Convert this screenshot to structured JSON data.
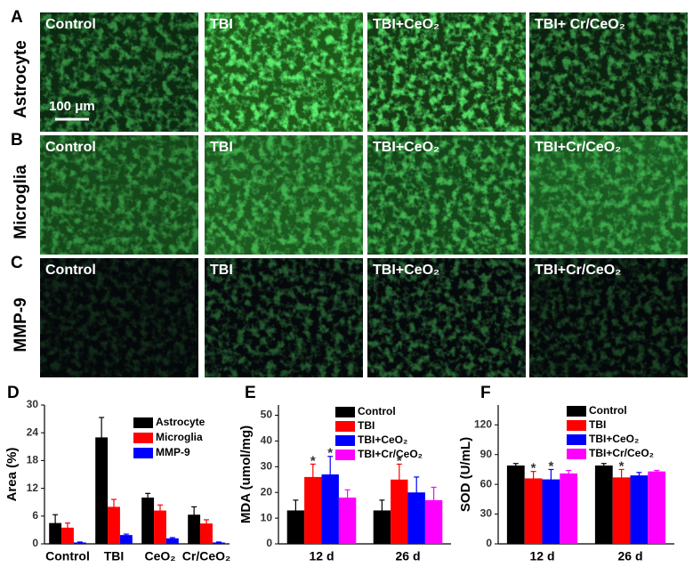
{
  "micrographs": {
    "rows": [
      {
        "letter": "A",
        "label": "Astrocyte",
        "columns": [
          "Control",
          "TBI",
          "TBI+CeO₂",
          "TBI+ Cr/CeO₂"
        ]
      },
      {
        "letter": "B",
        "label": "Microglia",
        "columns": [
          "Control",
          "TBI",
          "TBI+CeO₂",
          "TBI+Cr/CeO₂"
        ]
      },
      {
        "letter": "C",
        "label": "MMP-9",
        "columns": [
          "Control",
          "TBI",
          "TBI+CeO₂",
          "TBI+Cr/CeO₂"
        ]
      }
    ],
    "scale_bar": "100 μm"
  },
  "chart_data": [
    {
      "type": "bar",
      "label": "D",
      "ylabel": "Area (%)",
      "categories": [
        "Control",
        "TBI",
        "CeO₂",
        "Cr/CeO₂"
      ],
      "ylim": [
        0,
        30
      ],
      "yticks": [
        0,
        6,
        12,
        18,
        24,
        30
      ],
      "legend": "upper right",
      "series": [
        {
          "name": "Astrocyte",
          "color": "#000000",
          "values": [
            4.5,
            23,
            10,
            6.3
          ],
          "errors": [
            1.8,
            4.3,
            0.9,
            1.7
          ]
        },
        {
          "name": "Microglia",
          "color": "#ff0000",
          "values": [
            3.5,
            8,
            7.2,
            4.4
          ],
          "errors": [
            1,
            1.6,
            1.2,
            0.8
          ]
        },
        {
          "name": "MMP-9",
          "color": "#0000ff",
          "values": [
            0.3,
            1.9,
            1.2,
            0.3
          ],
          "errors": [
            0.1,
            0.2,
            0.15,
            0.1
          ]
        }
      ]
    },
    {
      "type": "bar",
      "label": "E",
      "ylabel": "MDA (umol/mg)",
      "categories": [
        "12 d",
        "26 d"
      ],
      "ylim": [
        0,
        54
      ],
      "yticks": [
        0,
        10,
        20,
        30,
        40,
        50
      ],
      "legend": "upper right",
      "series": [
        {
          "name": "Control",
          "color": "#000000",
          "values": [
            13,
            13
          ],
          "errors": [
            4,
            4
          ],
          "stars": [
            null,
            null
          ]
        },
        {
          "name": "TBI",
          "color": "#ff0000",
          "values": [
            26,
            25
          ],
          "errors": [
            5,
            6
          ],
          "stars": [
            "*",
            "*"
          ]
        },
        {
          "name": "TBI+CeO₂",
          "color": "#0000ff",
          "values": [
            27,
            20
          ],
          "errors": [
            7,
            6
          ],
          "stars": [
            "*",
            null
          ]
        },
        {
          "name": "TBI+Cr/CeO₂",
          "color": "#ff00ff",
          "values": [
            18,
            17
          ],
          "errors": [
            3,
            5
          ],
          "stars": [
            null,
            null
          ]
        }
      ]
    },
    {
      "type": "bar",
      "label": "F",
      "ylabel": "SOD (U/mL)",
      "categories": [
        "12 d",
        "26 d"
      ],
      "ylim": [
        0,
        140
      ],
      "yticks": [
        0,
        30,
        60,
        90,
        120
      ],
      "legend": "upper right",
      "series": [
        {
          "name": "Control",
          "color": "#000000",
          "values": [
            79,
            79
          ],
          "errors": [
            2,
            2
          ],
          "stars": [
            null,
            null
          ]
        },
        {
          "name": "TBI",
          "color": "#ff0000",
          "values": [
            66,
            67
          ],
          "errors": [
            7,
            8
          ],
          "stars": [
            "*",
            "*"
          ]
        },
        {
          "name": "TBI+CeO₂",
          "color": "#0000ff",
          "values": [
            65,
            69
          ],
          "errors": [
            10,
            3
          ],
          "stars": [
            "*",
            null
          ]
        },
        {
          "name": "TBI+Cr/CeO₂",
          "color": "#ff00ff",
          "values": [
            71,
            73
          ],
          "errors": [
            3,
            1
          ],
          "stars": [
            null,
            null
          ]
        }
      ]
    }
  ]
}
